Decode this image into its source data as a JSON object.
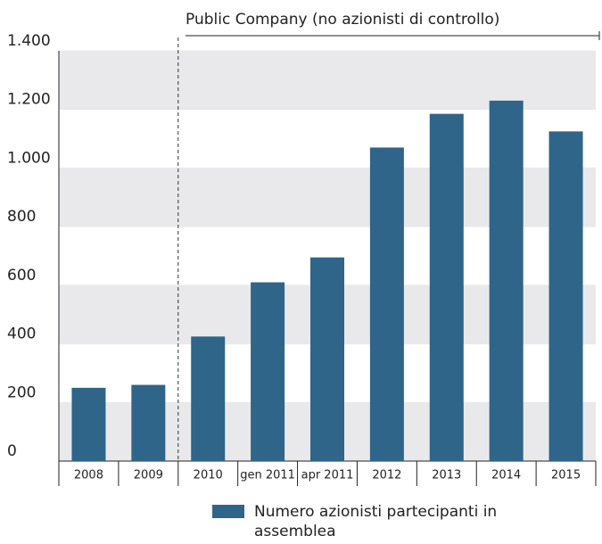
{
  "chart_data": {
    "type": "bar",
    "annotation": "Public Company (no azionisti di controllo)",
    "categories": [
      "2008",
      "2009",
      "2010",
      "gen 2011",
      "apr 2011",
      "2012",
      "2013",
      "2014",
      "2015"
    ],
    "series": [
      {
        "name": "Numero azionisti partecipanti in assemblea",
        "color": "#2e6589",
        "values": [
          250,
          260,
          425,
          610,
          695,
          1070,
          1185,
          1230,
          1125
        ]
      }
    ],
    "ylim": [
      0,
      1400
    ],
    "yticks": [
      0,
      200,
      400,
      600,
      800,
      {
        "value": 1000,
        "label": "1.000"
      },
      {
        "value": 1200,
        "label": "1.200"
      },
      {
        "value": 1400,
        "label": "1.400"
      }
    ],
    "grid": true
  }
}
